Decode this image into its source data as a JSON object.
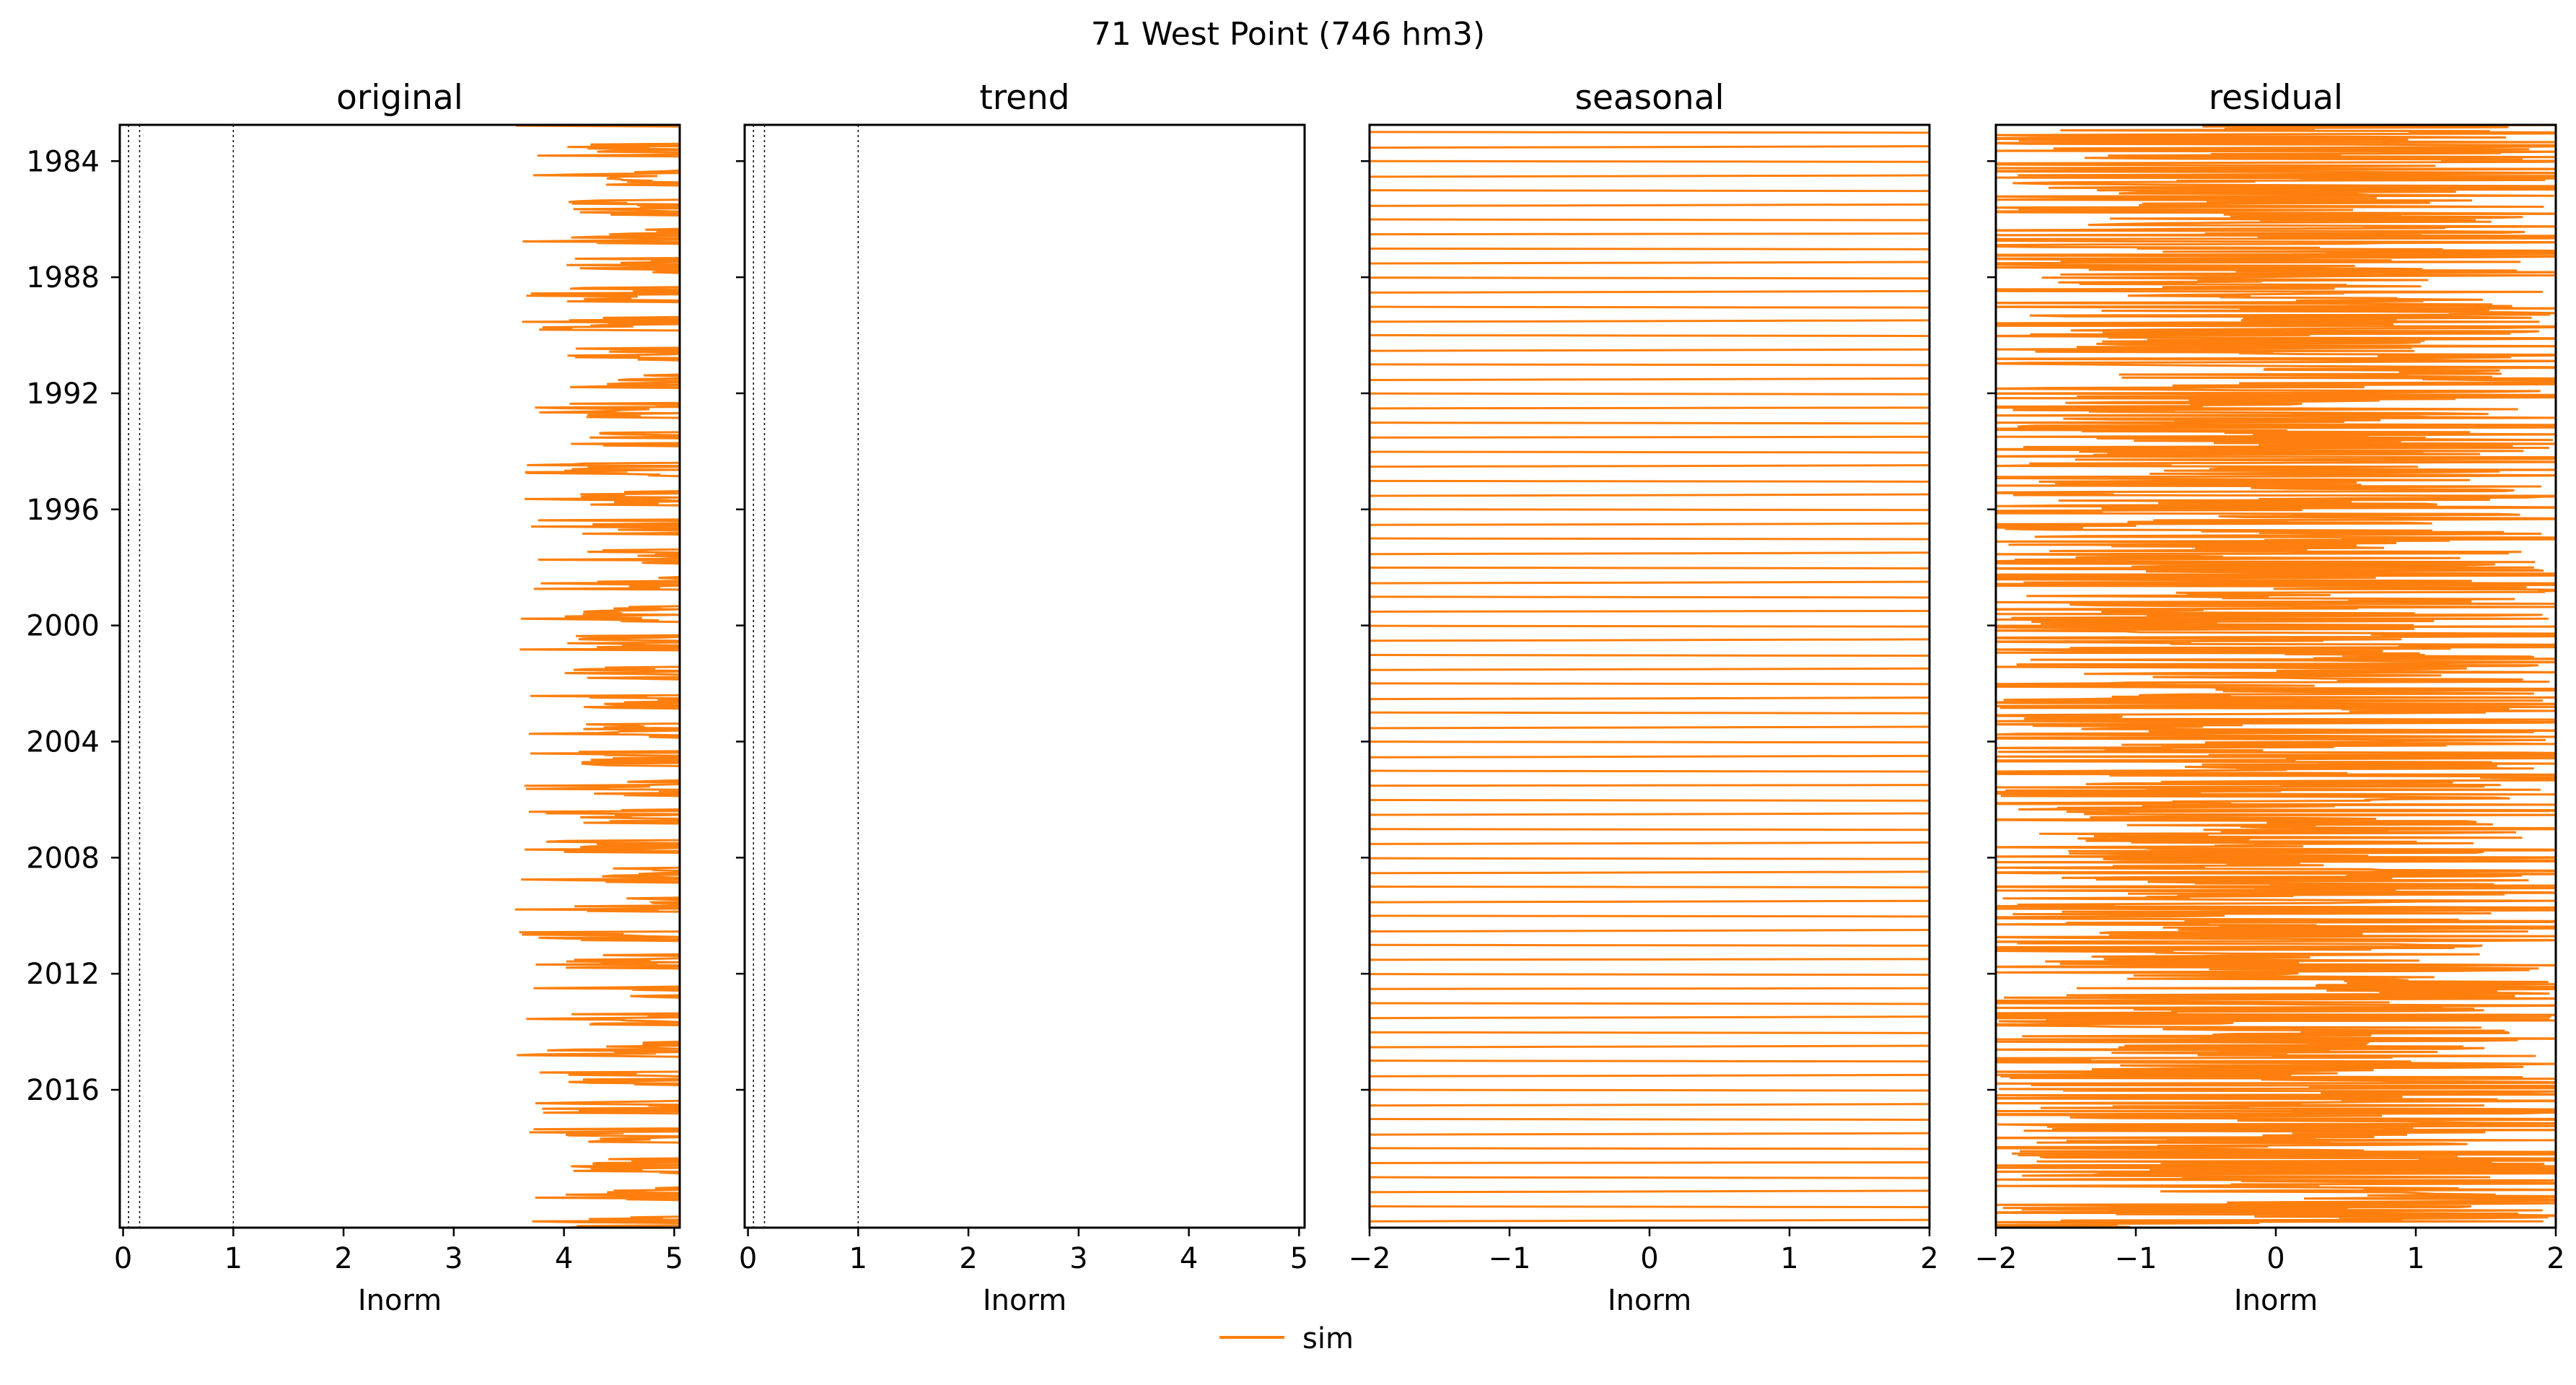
{
  "figure": {
    "title": "71  West Point (746 hm3)",
    "series_color": "#ff7f0e",
    "legend": {
      "label": "sim",
      "placement": "bottom-center"
    }
  },
  "chart_data": [
    {
      "type": "line",
      "title": "original",
      "xlabel": "Inorm",
      "ylabel": "",
      "orientation": "horizontal-time",
      "xlim": [
        -0.03,
        5.05
      ],
      "xticks": [
        0,
        1,
        2,
        3,
        4,
        5
      ],
      "time_range": [
        "1982-10-01",
        "2020-09-30"
      ],
      "yticks": [
        "1984",
        "1988",
        "1992",
        "1996",
        "2000",
        "2004",
        "2008",
        "2012",
        "2016"
      ],
      "reference_lines": [
        0.05,
        0.15,
        1.0
      ],
      "grid": false,
      "series": [
        {
          "name": "sim",
          "profile": {
            "baseline": 5.0,
            "typical_min": 4.0,
            "dry_min": 3.55
          }
        }
      ]
    },
    {
      "type": "line",
      "title": "trend",
      "xlabel": "Inorm",
      "ylabel": "",
      "orientation": "horizontal-time",
      "xlim": [
        -0.03,
        5.05
      ],
      "xticks": [
        0,
        1,
        2,
        3,
        4,
        5
      ],
      "time_range": [
        "1982-10-01",
        "2020-09-30"
      ],
      "yticks": [
        "1984",
        "1988",
        "1992",
        "1996",
        "2000",
        "2004",
        "2008",
        "2012",
        "2016"
      ],
      "reference_lines": [
        0.05,
        0.15,
        1.0
      ],
      "grid": false,
      "series": [
        {
          "name": "sim",
          "profile": {
            "baseline": 5.05
          }
        }
      ]
    },
    {
      "type": "line",
      "title": "seasonal",
      "xlabel": "Inorm",
      "ylabel": "",
      "orientation": "horizontal-time",
      "xlim": [
        -2,
        2
      ],
      "xticks": [
        -2,
        -1,
        0,
        1,
        2
      ],
      "xticklabels": [
        "−2",
        "−1",
        "0",
        "1",
        "2"
      ],
      "time_range": [
        "1982-10-01",
        "2020-09-30"
      ],
      "yticks": [
        "1984",
        "1988",
        "1992",
        "1996",
        "2000",
        "2004",
        "2008",
        "2012",
        "2016"
      ],
      "grid": false,
      "series": [
        {
          "name": "sim",
          "profile": {
            "annual_low": -2.2,
            "annual_high": 2.2,
            "mid_step": 0.2
          }
        }
      ]
    },
    {
      "type": "line",
      "title": "residual",
      "xlabel": "Inorm",
      "ylabel": "",
      "orientation": "horizontal-time",
      "xlim": [
        -2,
        2
      ],
      "xticks": [
        -2,
        -1,
        0,
        1,
        2
      ],
      "xticklabels": [
        "−2",
        "−1",
        "0",
        "1",
        "2"
      ],
      "time_range": [
        "1982-10-01",
        "2020-09-30"
      ],
      "yticks": [
        "1984",
        "1988",
        "1992",
        "1996",
        "2000",
        "2004",
        "2008",
        "2012",
        "2016"
      ],
      "grid": false,
      "series": [
        {
          "name": "sim",
          "profile": {
            "range": [
              -2.6,
              2.6
            ]
          }
        }
      ]
    }
  ]
}
